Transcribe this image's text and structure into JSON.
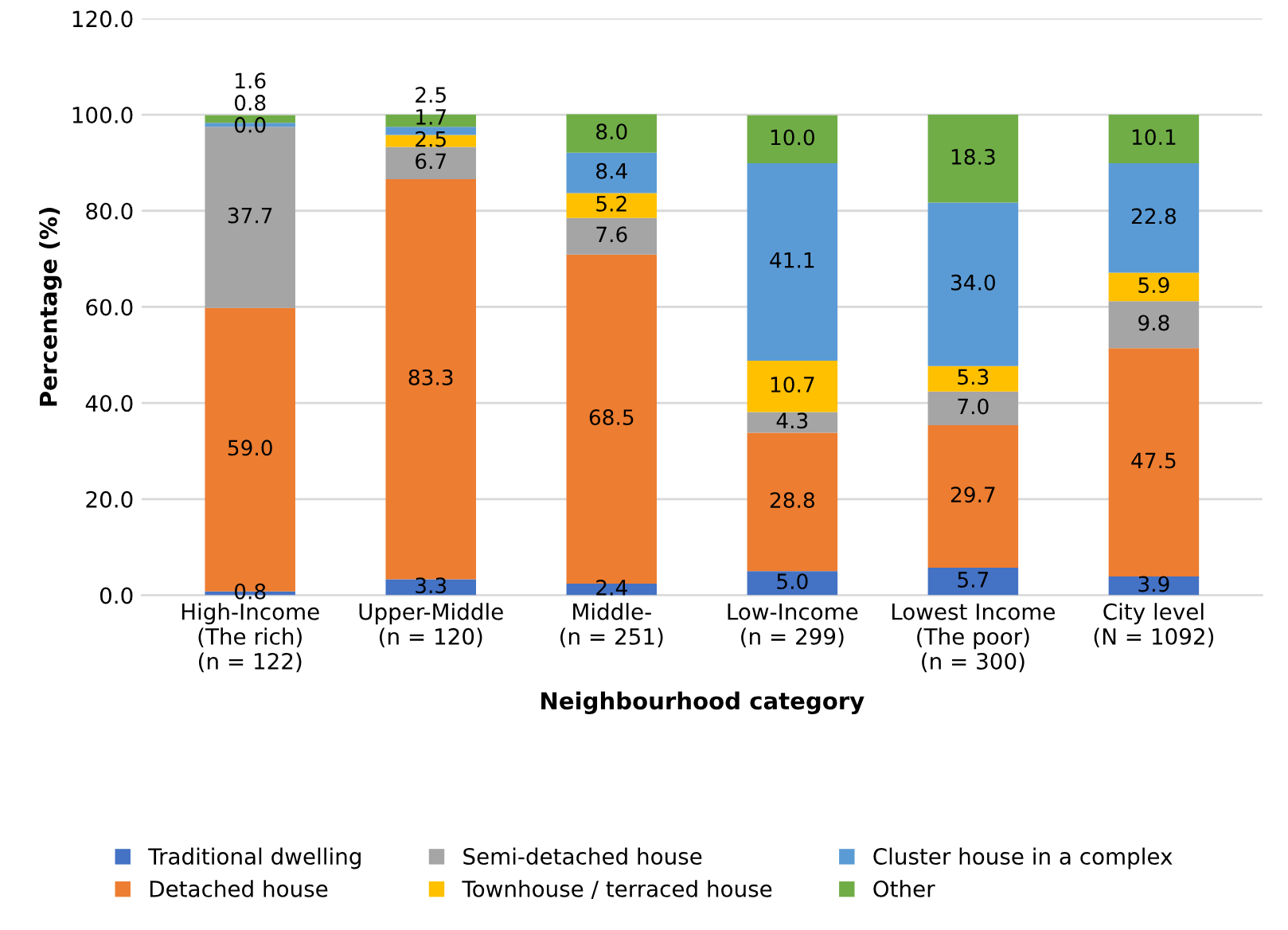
{
  "chart_data": {
    "type": "bar",
    "stacked": true,
    "xlabel": "Neighbourhood category",
    "ylabel": "Percentage (%)",
    "categories": [
      "High-Income\n(The rich)\n(n = 122)",
      "Upper-Middle\n(n = 120)",
      "Middle-\n(n = 251)",
      "Low-Income\n(n = 299)",
      "Lowest Income\n(The poor)\n(n = 300)",
      "City level\n(N = 1092)"
    ],
    "series": [
      {
        "name": "Traditional dwelling",
        "color": "#4472c4",
        "values": [
          0.8,
          3.3,
          2.4,
          5.0,
          5.7,
          3.9
        ],
        "value_labels": [
          "0.8",
          "3.3",
          "2.4",
          "5.0",
          "5.7",
          "3.9"
        ]
      },
      {
        "name": "Detached house",
        "color": "#ed7d31",
        "values": [
          59.0,
          83.3,
          68.5,
          28.8,
          29.7,
          47.5
        ],
        "value_labels": [
          "59.0",
          "83.3",
          "68.5",
          "28.8",
          "29.7",
          "47.5"
        ]
      },
      {
        "name": "Semi-detached house",
        "color": "#a5a5a5",
        "values": [
          37.7,
          6.7,
          7.6,
          4.3,
          7.0,
          9.8
        ],
        "value_labels": [
          "37.7",
          "6.7",
          "7.6",
          "4.3",
          "7.0",
          "9.8"
        ]
      },
      {
        "name": "Townhouse / terraced house",
        "color": "#ffc000",
        "values": [
          0.0,
          2.5,
          5.2,
          10.7,
          5.3,
          5.9
        ],
        "value_labels": [
          "0.0",
          "2.5",
          "5.2",
          "10.7",
          "5.3",
          "5.9"
        ]
      },
      {
        "name": "Cluster house in a complex",
        "color": "#5b9bd5",
        "values": [
          0.8,
          1.7,
          8.4,
          41.1,
          34.0,
          22.8
        ],
        "value_labels": [
          "0.8",
          "1.7",
          "8.4",
          "41.1",
          "34.0",
          "22.8"
        ]
      },
      {
        "name": "Other",
        "color": "#70ad47",
        "values": [
          1.6,
          2.5,
          8.0,
          10.0,
          18.3,
          10.1
        ],
        "value_labels": [
          "1.6",
          "2.5",
          "8.0",
          "10.0",
          "18.3",
          "10.1"
        ]
      }
    ],
    "ylim": [
      0,
      120
    ],
    "yticks": [
      {
        "value": 0,
        "label": "0.0"
      },
      {
        "value": 20,
        "label": "20.0"
      },
      {
        "value": 40,
        "label": "40.0"
      },
      {
        "value": 60,
        "label": "60.0"
      },
      {
        "value": 80,
        "label": "80.0"
      },
      {
        "value": 100,
        "label": "100.0"
      },
      {
        "value": 120,
        "label": "120.0"
      }
    ],
    "grid": "y",
    "legend": "bottom"
  }
}
